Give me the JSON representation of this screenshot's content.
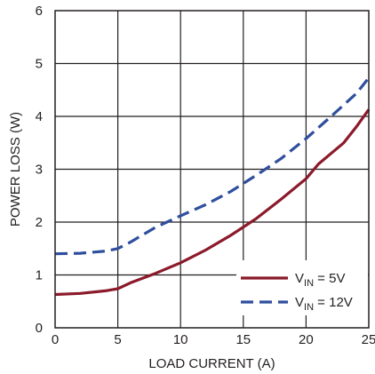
{
  "chart_data": {
    "type": "line",
    "xlabel": "LOAD CURRENT (A)",
    "ylabel": "POWER LOSS (W)",
    "xlim": [
      0,
      25
    ],
    "ylim": [
      0,
      6
    ],
    "xticks": [
      "0",
      "5",
      "10",
      "15",
      "20",
      "25"
    ],
    "yticks": [
      "0",
      "1",
      "2",
      "3",
      "4",
      "5",
      "6"
    ],
    "grid": true,
    "legend_position": "bottom-right",
    "series": [
      {
        "name_main": "V",
        "name_sub": "IN",
        "name_rest": " = 5V",
        "color": "#8b1a2b",
        "dash": "solid",
        "x": [
          0,
          2,
          4,
          5,
          6,
          8,
          10,
          12,
          14,
          16,
          18,
          20,
          21,
          22,
          23,
          24,
          25
        ],
        "y": [
          0.63,
          0.65,
          0.7,
          0.74,
          0.85,
          1.03,
          1.23,
          1.47,
          1.75,
          2.06,
          2.43,
          2.82,
          3.1,
          3.3,
          3.5,
          3.8,
          4.13
        ]
      },
      {
        "name_main": "V",
        "name_sub": "IN",
        "name_rest": " = 12V",
        "color": "#2f4f9e",
        "dash": "dashed",
        "x": [
          0,
          2,
          4,
          5,
          6,
          8,
          10,
          12,
          14,
          16,
          18,
          20,
          22,
          24,
          25
        ],
        "y": [
          1.4,
          1.41,
          1.45,
          1.5,
          1.62,
          1.9,
          2.12,
          2.33,
          2.58,
          2.88,
          3.2,
          3.58,
          4.0,
          4.43,
          4.73
        ]
      }
    ]
  }
}
